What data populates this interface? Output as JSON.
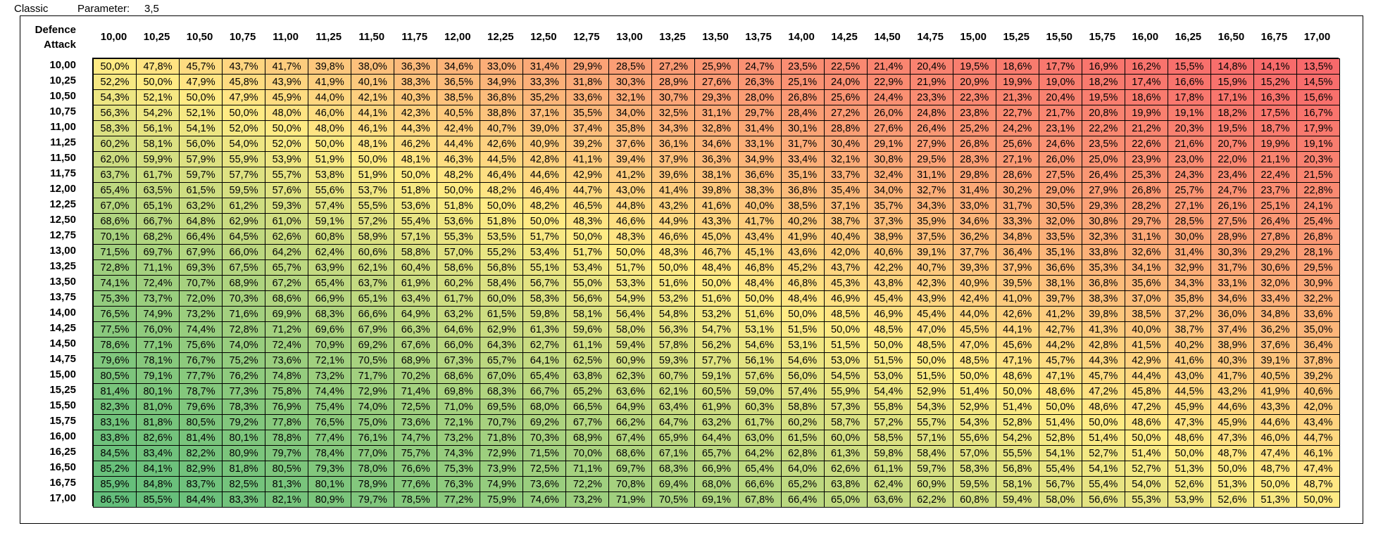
{
  "header": {
    "mode_label": "Classic",
    "param_label": "Parameter:",
    "param_value": "3,5"
  },
  "table": {
    "col_axis_label": "Defence",
    "row_axis_label": "Attack"
  },
  "colors": {
    "low": "#F8696B",
    "mid": "#FFEB84",
    "high": "#63BE7B"
  },
  "chart_data": {
    "type": "heatmap",
    "xlabel": "Defence",
    "ylabel": "Attack",
    "x": [
      "10,00",
      "10,25",
      "10,50",
      "10,75",
      "11,00",
      "11,25",
      "11,50",
      "11,75",
      "12,00",
      "12,25",
      "12,50",
      "12,75",
      "13,00",
      "13,25",
      "13,50",
      "13,75",
      "14,00",
      "14,25",
      "14,50",
      "14,75",
      "15,00",
      "15,25",
      "15,50",
      "15,75",
      "16,00",
      "16,25",
      "16,50",
      "16,75",
      "17,00"
    ],
    "y": [
      "10,00",
      "10,25",
      "10,50",
      "10,75",
      "11,00",
      "11,25",
      "11,50",
      "11,75",
      "12,00",
      "12,25",
      "12,50",
      "12,75",
      "13,00",
      "13,25",
      "13,50",
      "13,75",
      "14,00",
      "14,25",
      "14,50",
      "14,75",
      "15,00",
      "15,25",
      "15,50",
      "15,75",
      "16,00",
      "16,25",
      "16,50",
      "16,75",
      "17,00"
    ],
    "values": [
      [
        "50,0%",
        "47,8%",
        "45,7%",
        "43,7%",
        "41,7%",
        "39,8%",
        "38,0%",
        "36,3%",
        "34,6%",
        "33,0%",
        "31,4%",
        "29,9%",
        "28,5%",
        "27,2%",
        "25,9%",
        "24,7%",
        "23,5%",
        "22,5%",
        "21,4%",
        "20,4%",
        "19,5%",
        "18,6%",
        "17,7%",
        "16,9%",
        "16,2%",
        "15,5%",
        "14,8%",
        "14,1%",
        "13,5%"
      ],
      [
        "52,2%",
        "50,0%",
        "47,9%",
        "45,8%",
        "43,9%",
        "41,9%",
        "40,1%",
        "38,3%",
        "36,5%",
        "34,9%",
        "33,3%",
        "31,8%",
        "30,3%",
        "28,9%",
        "27,6%",
        "26,3%",
        "25,1%",
        "24,0%",
        "22,9%",
        "21,9%",
        "20,9%",
        "19,9%",
        "19,0%",
        "18,2%",
        "17,4%",
        "16,6%",
        "15,9%",
        "15,2%",
        "14,5%"
      ],
      [
        "54,3%",
        "52,1%",
        "50,0%",
        "47,9%",
        "45,9%",
        "44,0%",
        "42,1%",
        "40,3%",
        "38,5%",
        "36,8%",
        "35,2%",
        "33,6%",
        "32,1%",
        "30,7%",
        "29,3%",
        "28,0%",
        "26,8%",
        "25,6%",
        "24,4%",
        "23,3%",
        "22,3%",
        "21,3%",
        "20,4%",
        "19,5%",
        "18,6%",
        "17,8%",
        "17,1%",
        "16,3%",
        "15,6%"
      ],
      [
        "56,3%",
        "54,2%",
        "52,1%",
        "50,0%",
        "48,0%",
        "46,0%",
        "44,1%",
        "42,3%",
        "40,5%",
        "38,8%",
        "37,1%",
        "35,5%",
        "34,0%",
        "32,5%",
        "31,1%",
        "29,7%",
        "28,4%",
        "27,2%",
        "26,0%",
        "24,8%",
        "23,8%",
        "22,7%",
        "21,7%",
        "20,8%",
        "19,9%",
        "19,1%",
        "18,2%",
        "17,5%",
        "16,7%"
      ],
      [
        "58,3%",
        "56,1%",
        "54,1%",
        "52,0%",
        "50,0%",
        "48,0%",
        "46,1%",
        "44,3%",
        "42,4%",
        "40,7%",
        "39,0%",
        "37,4%",
        "35,8%",
        "34,3%",
        "32,8%",
        "31,4%",
        "30,1%",
        "28,8%",
        "27,6%",
        "26,4%",
        "25,2%",
        "24,2%",
        "23,1%",
        "22,2%",
        "21,2%",
        "20,3%",
        "19,5%",
        "18,7%",
        "17,9%"
      ],
      [
        "60,2%",
        "58,1%",
        "56,0%",
        "54,0%",
        "52,0%",
        "50,0%",
        "48,1%",
        "46,2%",
        "44,4%",
        "42,6%",
        "40,9%",
        "39,2%",
        "37,6%",
        "36,1%",
        "34,6%",
        "33,1%",
        "31,7%",
        "30,4%",
        "29,1%",
        "27,9%",
        "26,8%",
        "25,6%",
        "24,6%",
        "23,5%",
        "22,6%",
        "21,6%",
        "20,7%",
        "19,9%",
        "19,1%"
      ],
      [
        "62,0%",
        "59,9%",
        "57,9%",
        "55,9%",
        "53,9%",
        "51,9%",
        "50,0%",
        "48,1%",
        "46,3%",
        "44,5%",
        "42,8%",
        "41,1%",
        "39,4%",
        "37,9%",
        "36,3%",
        "34,9%",
        "33,4%",
        "32,1%",
        "30,8%",
        "29,5%",
        "28,3%",
        "27,1%",
        "26,0%",
        "25,0%",
        "23,9%",
        "23,0%",
        "22,0%",
        "21,1%",
        "20,3%"
      ],
      [
        "63,7%",
        "61,7%",
        "59,7%",
        "57,7%",
        "55,7%",
        "53,8%",
        "51,9%",
        "50,0%",
        "48,2%",
        "46,4%",
        "44,6%",
        "42,9%",
        "41,2%",
        "39,6%",
        "38,1%",
        "36,6%",
        "35,1%",
        "33,7%",
        "32,4%",
        "31,1%",
        "29,8%",
        "28,6%",
        "27,5%",
        "26,4%",
        "25,3%",
        "24,3%",
        "23,4%",
        "22,4%",
        "21,5%"
      ],
      [
        "65,4%",
        "63,5%",
        "61,5%",
        "59,5%",
        "57,6%",
        "55,6%",
        "53,7%",
        "51,8%",
        "50,0%",
        "48,2%",
        "46,4%",
        "44,7%",
        "43,0%",
        "41,4%",
        "39,8%",
        "38,3%",
        "36,8%",
        "35,4%",
        "34,0%",
        "32,7%",
        "31,4%",
        "30,2%",
        "29,0%",
        "27,9%",
        "26,8%",
        "25,7%",
        "24,7%",
        "23,7%",
        "22,8%"
      ],
      [
        "67,0%",
        "65,1%",
        "63,2%",
        "61,2%",
        "59,3%",
        "57,4%",
        "55,5%",
        "53,6%",
        "51,8%",
        "50,0%",
        "48,2%",
        "46,5%",
        "44,8%",
        "43,2%",
        "41,6%",
        "40,0%",
        "38,5%",
        "37,1%",
        "35,7%",
        "34,3%",
        "33,0%",
        "31,7%",
        "30,5%",
        "29,3%",
        "28,2%",
        "27,1%",
        "26,1%",
        "25,1%",
        "24,1%"
      ],
      [
        "68,6%",
        "66,7%",
        "64,8%",
        "62,9%",
        "61,0%",
        "59,1%",
        "57,2%",
        "55,4%",
        "53,6%",
        "51,8%",
        "50,0%",
        "48,3%",
        "46,6%",
        "44,9%",
        "43,3%",
        "41,7%",
        "40,2%",
        "38,7%",
        "37,3%",
        "35,9%",
        "34,6%",
        "33,3%",
        "32,0%",
        "30,8%",
        "29,7%",
        "28,5%",
        "27,5%",
        "26,4%",
        "25,4%"
      ],
      [
        "70,1%",
        "68,2%",
        "66,4%",
        "64,5%",
        "62,6%",
        "60,8%",
        "58,9%",
        "57,1%",
        "55,3%",
        "53,5%",
        "51,7%",
        "50,0%",
        "48,3%",
        "46,6%",
        "45,0%",
        "43,4%",
        "41,9%",
        "40,4%",
        "38,9%",
        "37,5%",
        "36,2%",
        "34,8%",
        "33,5%",
        "32,3%",
        "31,1%",
        "30,0%",
        "28,9%",
        "27,8%",
        "26,8%"
      ],
      [
        "71,5%",
        "69,7%",
        "67,9%",
        "66,0%",
        "64,2%",
        "62,4%",
        "60,6%",
        "58,8%",
        "57,0%",
        "55,2%",
        "53,4%",
        "51,7%",
        "50,0%",
        "48,3%",
        "46,7%",
        "45,1%",
        "43,6%",
        "42,0%",
        "40,6%",
        "39,1%",
        "37,7%",
        "36,4%",
        "35,1%",
        "33,8%",
        "32,6%",
        "31,4%",
        "30,3%",
        "29,2%",
        "28,1%"
      ],
      [
        "72,8%",
        "71,1%",
        "69,3%",
        "67,5%",
        "65,7%",
        "63,9%",
        "62,1%",
        "60,4%",
        "58,6%",
        "56,8%",
        "55,1%",
        "53,4%",
        "51,7%",
        "50,0%",
        "48,4%",
        "46,8%",
        "45,2%",
        "43,7%",
        "42,2%",
        "40,7%",
        "39,3%",
        "37,9%",
        "36,6%",
        "35,3%",
        "34,1%",
        "32,9%",
        "31,7%",
        "30,6%",
        "29,5%"
      ],
      [
        "74,1%",
        "72,4%",
        "70,7%",
        "68,9%",
        "67,2%",
        "65,4%",
        "63,7%",
        "61,9%",
        "60,2%",
        "58,4%",
        "56,7%",
        "55,0%",
        "53,3%",
        "51,6%",
        "50,0%",
        "48,4%",
        "46,8%",
        "45,3%",
        "43,8%",
        "42,3%",
        "40,9%",
        "39,5%",
        "38,1%",
        "36,8%",
        "35,6%",
        "34,3%",
        "33,1%",
        "32,0%",
        "30,9%"
      ],
      [
        "75,3%",
        "73,7%",
        "72,0%",
        "70,3%",
        "68,6%",
        "66,9%",
        "65,1%",
        "63,4%",
        "61,7%",
        "60,0%",
        "58,3%",
        "56,6%",
        "54,9%",
        "53,2%",
        "51,6%",
        "50,0%",
        "48,4%",
        "46,9%",
        "45,4%",
        "43,9%",
        "42,4%",
        "41,0%",
        "39,7%",
        "38,3%",
        "37,0%",
        "35,8%",
        "34,6%",
        "33,4%",
        "32,2%"
      ],
      [
        "76,5%",
        "74,9%",
        "73,2%",
        "71,6%",
        "69,9%",
        "68,3%",
        "66,6%",
        "64,9%",
        "63,2%",
        "61,5%",
        "59,8%",
        "58,1%",
        "56,4%",
        "54,8%",
        "53,2%",
        "51,6%",
        "50,0%",
        "48,5%",
        "46,9%",
        "45,4%",
        "44,0%",
        "42,6%",
        "41,2%",
        "39,8%",
        "38,5%",
        "37,2%",
        "36,0%",
        "34,8%",
        "33,6%"
      ],
      [
        "77,5%",
        "76,0%",
        "74,4%",
        "72,8%",
        "71,2%",
        "69,6%",
        "67,9%",
        "66,3%",
        "64,6%",
        "62,9%",
        "61,3%",
        "59,6%",
        "58,0%",
        "56,3%",
        "54,7%",
        "53,1%",
        "51,5%",
        "50,0%",
        "48,5%",
        "47,0%",
        "45,5%",
        "44,1%",
        "42,7%",
        "41,3%",
        "40,0%",
        "38,7%",
        "37,4%",
        "36,2%",
        "35,0%"
      ],
      [
        "78,6%",
        "77,1%",
        "75,6%",
        "74,0%",
        "72,4%",
        "70,9%",
        "69,2%",
        "67,6%",
        "66,0%",
        "64,3%",
        "62,7%",
        "61,1%",
        "59,4%",
        "57,8%",
        "56,2%",
        "54,6%",
        "53,1%",
        "51,5%",
        "50,0%",
        "48,5%",
        "47,0%",
        "45,6%",
        "44,2%",
        "42,8%",
        "41,5%",
        "40,2%",
        "38,9%",
        "37,6%",
        "36,4%"
      ],
      [
        "79,6%",
        "78,1%",
        "76,7%",
        "75,2%",
        "73,6%",
        "72,1%",
        "70,5%",
        "68,9%",
        "67,3%",
        "65,7%",
        "64,1%",
        "62,5%",
        "60,9%",
        "59,3%",
        "57,7%",
        "56,1%",
        "54,6%",
        "53,0%",
        "51,5%",
        "50,0%",
        "48,5%",
        "47,1%",
        "45,7%",
        "44,3%",
        "42,9%",
        "41,6%",
        "40,3%",
        "39,1%",
        "37,8%"
      ],
      [
        "80,5%",
        "79,1%",
        "77,7%",
        "76,2%",
        "74,8%",
        "73,2%",
        "71,7%",
        "70,2%",
        "68,6%",
        "67,0%",
        "65,4%",
        "63,8%",
        "62,3%",
        "60,7%",
        "59,1%",
        "57,6%",
        "56,0%",
        "54,5%",
        "53,0%",
        "51,5%",
        "50,0%",
        "48,6%",
        "47,1%",
        "45,7%",
        "44,4%",
        "43,0%",
        "41,7%",
        "40,5%",
        "39,2%"
      ],
      [
        "81,4%",
        "80,1%",
        "78,7%",
        "77,3%",
        "75,8%",
        "74,4%",
        "72,9%",
        "71,4%",
        "69,8%",
        "68,3%",
        "66,7%",
        "65,2%",
        "63,6%",
        "62,1%",
        "60,5%",
        "59,0%",
        "57,4%",
        "55,9%",
        "54,4%",
        "52,9%",
        "51,4%",
        "50,0%",
        "48,6%",
        "47,2%",
        "45,8%",
        "44,5%",
        "43,2%",
        "41,9%",
        "40,6%"
      ],
      [
        "82,3%",
        "81,0%",
        "79,6%",
        "78,3%",
        "76,9%",
        "75,4%",
        "74,0%",
        "72,5%",
        "71,0%",
        "69,5%",
        "68,0%",
        "66,5%",
        "64,9%",
        "63,4%",
        "61,9%",
        "60,3%",
        "58,8%",
        "57,3%",
        "55,8%",
        "54,3%",
        "52,9%",
        "51,4%",
        "50,0%",
        "48,6%",
        "47,2%",
        "45,9%",
        "44,6%",
        "43,3%",
        "42,0%"
      ],
      [
        "83,1%",
        "81,8%",
        "80,5%",
        "79,2%",
        "77,8%",
        "76,5%",
        "75,0%",
        "73,6%",
        "72,1%",
        "70,7%",
        "69,2%",
        "67,7%",
        "66,2%",
        "64,7%",
        "63,2%",
        "61,7%",
        "60,2%",
        "58,7%",
        "57,2%",
        "55,7%",
        "54,3%",
        "52,8%",
        "51,4%",
        "50,0%",
        "48,6%",
        "47,3%",
        "45,9%",
        "44,6%",
        "43,4%"
      ],
      [
        "83,8%",
        "82,6%",
        "81,4%",
        "80,1%",
        "78,8%",
        "77,4%",
        "76,1%",
        "74,7%",
        "73,2%",
        "71,8%",
        "70,3%",
        "68,9%",
        "67,4%",
        "65,9%",
        "64,4%",
        "63,0%",
        "61,5%",
        "60,0%",
        "58,5%",
        "57,1%",
        "55,6%",
        "54,2%",
        "52,8%",
        "51,4%",
        "50,0%",
        "48,6%",
        "47,3%",
        "46,0%",
        "44,7%"
      ],
      [
        "84,5%",
        "83,4%",
        "82,2%",
        "80,9%",
        "79,7%",
        "78,4%",
        "77,0%",
        "75,7%",
        "74,3%",
        "72,9%",
        "71,5%",
        "70,0%",
        "68,6%",
        "67,1%",
        "65,7%",
        "64,2%",
        "62,8%",
        "61,3%",
        "59,8%",
        "58,4%",
        "57,0%",
        "55,5%",
        "54,1%",
        "52,7%",
        "51,4%",
        "50,0%",
        "48,7%",
        "47,4%",
        "46,1%"
      ],
      [
        "85,2%",
        "84,1%",
        "82,9%",
        "81,8%",
        "80,5%",
        "79,3%",
        "78,0%",
        "76,6%",
        "75,3%",
        "73,9%",
        "72,5%",
        "71,1%",
        "69,7%",
        "68,3%",
        "66,9%",
        "65,4%",
        "64,0%",
        "62,6%",
        "61,1%",
        "59,7%",
        "58,3%",
        "56,8%",
        "55,4%",
        "54,1%",
        "52,7%",
        "51,3%",
        "50,0%",
        "48,7%",
        "47,4%"
      ],
      [
        "85,9%",
        "84,8%",
        "83,7%",
        "82,5%",
        "81,3%",
        "80,1%",
        "78,9%",
        "77,6%",
        "76,3%",
        "74,9%",
        "73,6%",
        "72,2%",
        "70,8%",
        "69,4%",
        "68,0%",
        "66,6%",
        "65,2%",
        "63,8%",
        "62,4%",
        "60,9%",
        "59,5%",
        "58,1%",
        "56,7%",
        "55,4%",
        "54,0%",
        "52,6%",
        "51,3%",
        "50,0%",
        "48,7%"
      ],
      [
        "86,5%",
        "85,5%",
        "84,4%",
        "83,3%",
        "82,1%",
        "80,9%",
        "79,7%",
        "78,5%",
        "77,2%",
        "75,9%",
        "74,6%",
        "73,2%",
        "71,9%",
        "70,5%",
        "69,1%",
        "67,8%",
        "66,4%",
        "65,0%",
        "63,6%",
        "62,2%",
        "60,8%",
        "59,4%",
        "58,0%",
        "56,6%",
        "55,3%",
        "53,9%",
        "52,6%",
        "51,3%",
        "50,0%"
      ]
    ]
  }
}
